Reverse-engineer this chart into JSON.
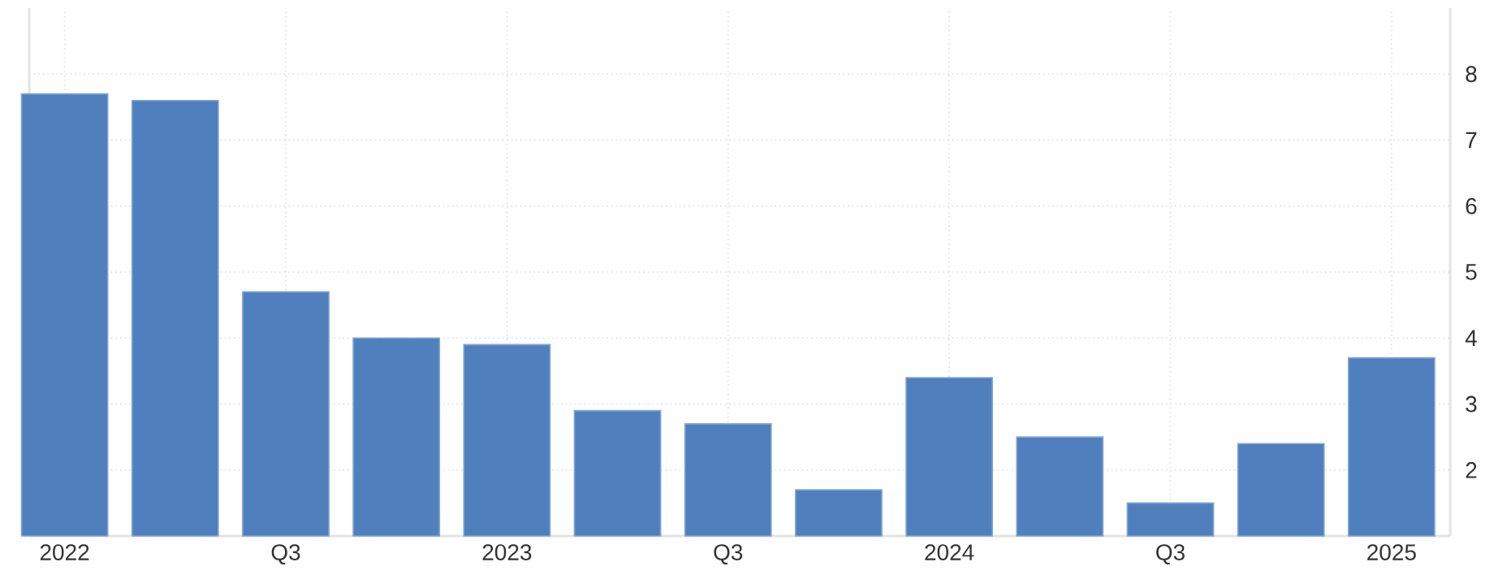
{
  "chart_data": {
    "type": "bar",
    "categories": [
      "2022",
      null,
      "Q3",
      null,
      "2023",
      null,
      "Q3",
      null,
      "2024",
      null,
      "Q3",
      null,
      "2025"
    ],
    "values": [
      7.7,
      7.6,
      4.7,
      4.0,
      3.9,
      2.9,
      2.7,
      1.7,
      3.4,
      2.5,
      1.5,
      2.4,
      3.7
    ],
    "color": "#4f80bd",
    "ylim": [
      1,
      9
    ],
    "yticks": [
      2,
      3,
      4,
      5,
      6,
      7,
      8
    ],
    "grid": true
  }
}
